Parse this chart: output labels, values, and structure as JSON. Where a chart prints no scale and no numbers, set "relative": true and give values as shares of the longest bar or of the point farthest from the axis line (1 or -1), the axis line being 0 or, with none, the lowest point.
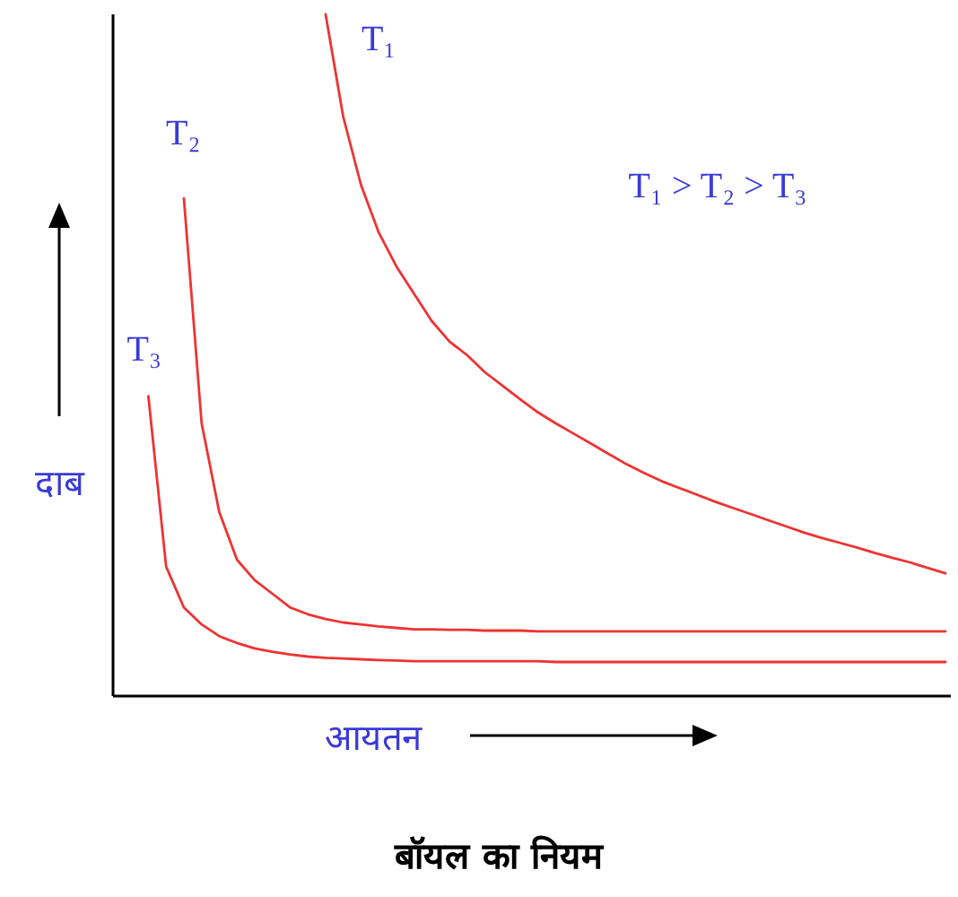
{
  "chart_data": {
    "type": "line",
    "relative": true,
    "title": "बॉयल का नियम",
    "xlabel": "आयतन",
    "ylabel": "दाब",
    "marker": "none",
    "line_style": "solid",
    "annotations": [
      "T₁ > T₂ > T₃"
    ],
    "categories": [
      null,
      null,
      null,
      null,
      null,
      null,
      null,
      null,
      null,
      null,
      null,
      null,
      null,
      null,
      null,
      null,
      null,
      null,
      null,
      null,
      null,
      null,
      null,
      null,
      null,
      null,
      null,
      null,
      null,
      null,
      null,
      null,
      null,
      null,
      null,
      null,
      null,
      null,
      null,
      null,
      null,
      null,
      null,
      null,
      null,
      null,
      null,
      null
    ],
    "series": [
      {
        "name": "T₁",
        "color": "#ee3333",
        "values": [
          null,
          null,
          null,
          null,
          null,
          null,
          null,
          null,
          null,
          null,
          null,
          null,
          1.0,
          0.85,
          0.75,
          0.68,
          0.63,
          0.59,
          0.55,
          0.52,
          0.5,
          0.475,
          0.455,
          0.435,
          0.416,
          0.4,
          0.385,
          0.37,
          0.355,
          0.34,
          0.327,
          0.315,
          0.305,
          0.295,
          0.285,
          0.276,
          0.267,
          0.258,
          0.249,
          0.24,
          0.232,
          0.225,
          0.218,
          0.21,
          0.203,
          0.196,
          0.188,
          0.18
        ]
      },
      {
        "name": "T₂",
        "color": "#ee3333",
        "values": [
          null,
          null,
          null,
          null,
          0.73,
          0.4,
          0.27,
          0.2,
          0.17,
          0.15,
          0.13,
          0.12,
          0.113,
          0.108,
          0.105,
          0.102,
          0.1,
          0.098,
          0.098,
          0.097,
          0.097,
          0.096,
          0.096,
          0.096,
          0.095,
          0.095,
          0.095,
          0.095,
          0.095,
          0.095,
          0.095,
          0.095,
          0.095,
          0.095,
          0.095,
          0.095,
          0.095,
          0.095,
          0.095,
          0.095,
          0.095,
          0.095,
          0.095,
          0.095,
          0.095,
          0.095,
          0.095,
          0.095
        ]
      },
      {
        "name": "T₃",
        "color": "#ee3333",
        "values": [
          null,
          null,
          0.44,
          0.19,
          0.13,
          0.105,
          0.088,
          0.078,
          0.07,
          0.065,
          0.061,
          0.058,
          0.056,
          0.055,
          0.054,
          0.053,
          0.052,
          0.051,
          0.051,
          0.051,
          0.051,
          0.051,
          0.051,
          0.051,
          0.051,
          0.05,
          0.05,
          0.05,
          0.05,
          0.05,
          0.05,
          0.05,
          0.05,
          0.05,
          0.05,
          0.05,
          0.05,
          0.05,
          0.05,
          0.05,
          0.05,
          0.05,
          0.05,
          0.05,
          0.05,
          0.05,
          0.05,
          0.05
        ]
      }
    ]
  }
}
